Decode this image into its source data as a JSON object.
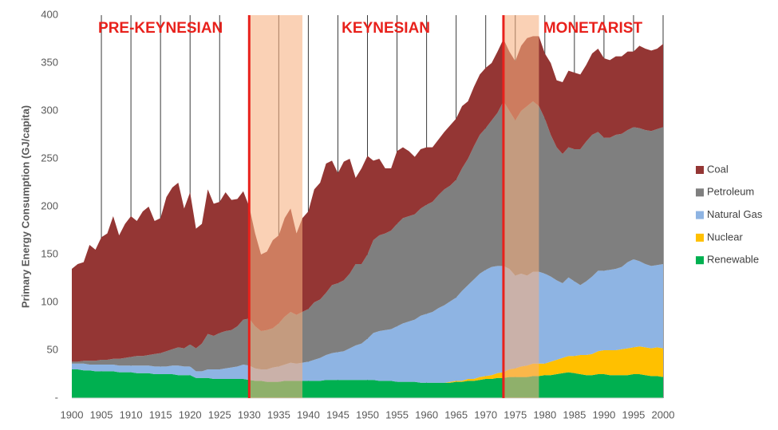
{
  "chart_data": {
    "type": "stacked_area",
    "y_label": "Primary Energy Consumption (GJ/capita)",
    "x": [
      1900,
      1901,
      1902,
      1903,
      1904,
      1905,
      1906,
      1907,
      1908,
      1909,
      1910,
      1911,
      1912,
      1913,
      1914,
      1915,
      1916,
      1917,
      1918,
      1919,
      1920,
      1921,
      1922,
      1923,
      1924,
      1925,
      1926,
      1927,
      1928,
      1929,
      1930,
      1931,
      1932,
      1933,
      1934,
      1935,
      1936,
      1937,
      1938,
      1939,
      1940,
      1941,
      1942,
      1943,
      1944,
      1945,
      1946,
      1947,
      1948,
      1949,
      1950,
      1951,
      1952,
      1953,
      1954,
      1955,
      1956,
      1957,
      1958,
      1959,
      1960,
      1961,
      1962,
      1963,
      1964,
      1965,
      1966,
      1967,
      1968,
      1969,
      1970,
      1971,
      1972,
      1973,
      1974,
      1975,
      1976,
      1977,
      1978,
      1979,
      1980,
      1981,
      1982,
      1983,
      1984,
      1985,
      1986,
      1987,
      1988,
      1989,
      1990,
      1991,
      1992,
      1993,
      1994,
      1995,
      1996,
      1997,
      1998,
      1999,
      2000
    ],
    "series": [
      {
        "name": "Coal",
        "color": "#943634",
        "values": [
          97,
          102,
          103,
          121,
          116,
          128,
          132,
          149,
          129,
          140,
          147,
          141,
          151,
          155,
          139,
          141,
          161,
          169,
          172,
          146,
          159,
          125,
          125,
          151,
          138,
          137,
          145,
          136,
          133,
          134,
          117,
          97,
          80,
          82,
          92,
          92,
          103,
          108,
          85,
          98,
          102,
          118,
          122,
          135,
          130,
          115,
          124,
          120,
          90,
          100,
          103,
          83,
          80,
          68,
          65,
          76,
          74,
          68,
          60,
          62,
          60,
          57,
          58,
          60,
          63,
          64,
          65,
          60,
          62,
          63,
          63,
          60,
          64,
          65,
          62,
          62,
          68,
          71,
          68,
          73,
          68,
          75,
          70,
          75,
          80,
          80,
          78,
          80,
          85,
          87,
          83,
          81,
          82,
          81,
          82,
          79,
          86,
          85,
          84,
          84,
          87
        ]
      },
      {
        "name": "Petroleum",
        "color": "#7F7F7F",
        "values": [
          2,
          2,
          3,
          4,
          4,
          5,
          5,
          6,
          7,
          8,
          9,
          10,
          10,
          11,
          13,
          14,
          16,
          17,
          19,
          19,
          23,
          24,
          29,
          37,
          35,
          38,
          39,
          39,
          42,
          47,
          49,
          44,
          40,
          41,
          41,
          45,
          50,
          53,
          51,
          53,
          55,
          60,
          61,
          65,
          71,
          72,
          74,
          78,
          85,
          83,
          88,
          97,
          100,
          101,
          103,
          107,
          110,
          110,
          110,
          112,
          114,
          115,
          118,
          121,
          121,
          123,
          128,
          132,
          139,
          145,
          148,
          153,
          160,
          172,
          165,
          162,
          170,
          177,
          178,
          173,
          162,
          148,
          139,
          135,
          136,
          138,
          142,
          146,
          148,
          145,
          139,
          138,
          140,
          139,
          138,
          138,
          139,
          140,
          141,
          142,
          143
        ]
      },
      {
        "name": "Natural Gas",
        "color": "#8EB4E3",
        "values": [
          6,
          6,
          7,
          6,
          7,
          7,
          7,
          7,
          7,
          7,
          7,
          8,
          8,
          8,
          8,
          8,
          8,
          9,
          10,
          9,
          9,
          7,
          7,
          9,
          10,
          10,
          11,
          12,
          13,
          15,
          15,
          13,
          12,
          13,
          15,
          16,
          17,
          19,
          18,
          19,
          20,
          22,
          24,
          26,
          28,
          29,
          30,
          33,
          36,
          38,
          43,
          49,
          52,
          53,
          54,
          58,
          61,
          63,
          65,
          70,
          72,
          74,
          78,
          81,
          84,
          87,
          94,
          98,
          104,
          108,
          111,
          113,
          112,
          111,
          105,
          97,
          97,
          94,
          96,
          96,
          94,
          89,
          83,
          78,
          82,
          78,
          73,
          77,
          81,
          84,
          83,
          84,
          85,
          86,
          90,
          92,
          89,
          87,
          86,
          86,
          88
        ]
      },
      {
        "name": "Nuclear",
        "color": "#FFC000",
        "values": [
          0,
          0,
          0,
          0,
          0,
          0,
          0,
          0,
          0,
          0,
          0,
          0,
          0,
          0,
          0,
          0,
          0,
          0,
          0,
          0,
          0,
          0,
          0,
          0,
          0,
          0,
          0,
          0,
          0,
          0,
          0,
          0,
          0,
          0,
          0,
          0,
          0,
          0,
          0,
          0,
          0,
          0,
          0,
          0,
          0,
          0,
          0,
          0,
          0,
          0,
          0,
          0,
          0,
          0,
          0,
          0,
          0,
          0,
          0,
          0,
          0,
          0,
          0,
          0,
          1,
          1,
          1,
          2,
          2,
          3,
          3,
          4,
          5,
          6,
          8,
          9,
          11,
          12,
          13,
          13,
          12,
          14,
          15,
          16,
          17,
          18,
          20,
          21,
          22,
          24,
          25,
          26,
          26,
          27,
          28,
          28,
          29,
          29,
          29,
          30,
          30
        ]
      },
      {
        "name": "Renewable",
        "color": "#00B050",
        "values": [
          30,
          30,
          29,
          29,
          28,
          28,
          28,
          28,
          27,
          27,
          27,
          26,
          26,
          26,
          25,
          25,
          25,
          25,
          24,
          24,
          24,
          21,
          21,
          21,
          20,
          20,
          20,
          20,
          20,
          20,
          19,
          18,
          18,
          17,
          17,
          17,
          18,
          18,
          18,
          18,
          18,
          18,
          18,
          19,
          19,
          19,
          19,
          19,
          19,
          19,
          19,
          19,
          18,
          18,
          18,
          17,
          17,
          17,
          17,
          16,
          16,
          16,
          16,
          16,
          16,
          17,
          17,
          18,
          18,
          19,
          20,
          20,
          21,
          21,
          22,
          22,
          22,
          22,
          23,
          23,
          24,
          24,
          25,
          26,
          27,
          26,
          25,
          24,
          24,
          25,
          25,
          24,
          24,
          24,
          24,
          25,
          25,
          24,
          23,
          23,
          22
        ]
      }
    ],
    "xlim": [
      1900,
      2000
    ],
    "xticks": [
      1900,
      1905,
      1910,
      1915,
      1920,
      1925,
      1930,
      1935,
      1940,
      1945,
      1950,
      1955,
      1960,
      1965,
      1970,
      1975,
      1980,
      1985,
      1990,
      1995,
      2000
    ],
    "ylim": [
      0,
      400
    ],
    "yticks": [
      {
        "value": 0,
        "label": "-"
      },
      50,
      100,
      150,
      200,
      250,
      300,
      350,
      400
    ],
    "grid": "x",
    "legend": "right",
    "shaded_spans": [
      [
        1930,
        1939
      ],
      [
        1973,
        1979
      ]
    ],
    "dividers": [
      1930,
      1973
    ],
    "annotations": [
      "PRE-KEYNESIAN",
      "KEYNESIAN",
      "MONETARIST"
    ]
  }
}
